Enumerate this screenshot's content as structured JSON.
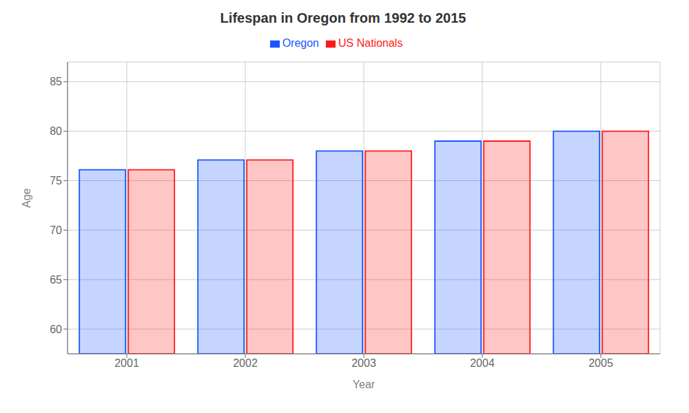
{
  "chart_data": {
    "type": "bar",
    "title": "Lifespan in Oregon from 1992 to 2015",
    "x_label": "Year",
    "y_label": "Age",
    "categories": [
      "2001",
      "2002",
      "2003",
      "2004",
      "2005"
    ],
    "series": [
      {
        "name": "Oregon",
        "color": "#1a56ff",
        "values": [
          76.1,
          77.1,
          78.0,
          79.0,
          80.0
        ]
      },
      {
        "name": "US Nationals",
        "color": "#ff1a1a",
        "values": [
          76.1,
          77.1,
          78.0,
          79.0,
          80.0
        ]
      }
    ],
    "ylim": [
      57.5,
      87
    ],
    "yticks": [
      60,
      65,
      70,
      75,
      80,
      85
    ],
    "grid": true,
    "legend": "top"
  }
}
